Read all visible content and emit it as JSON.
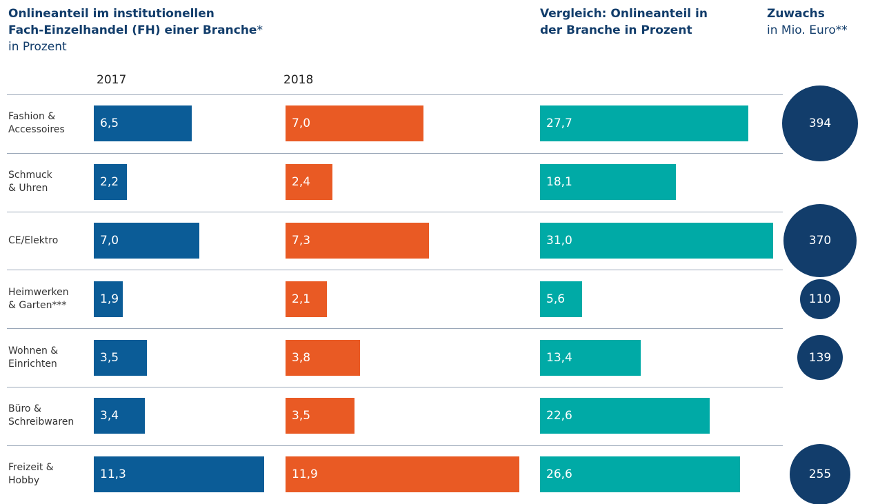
{
  "chart_data": {
    "type": "bar",
    "title": "Onlineanteil im institutionellen\nFach-Einzelhandel (FH) einer Branche",
    "title_note": "*",
    "subtitle": "in Prozent",
    "categories": [
      "Fashion &\nAccessoires",
      "Schmuck\n& Uhren",
      "CE/Elektro",
      "Heimwerken\n& Garten***",
      "Wohnen &\nEinrichten",
      "Büro &\nSchreibwaren",
      "Freizeit &\nHobby"
    ],
    "series": [
      {
        "name": "2017",
        "color": "#0b5c97",
        "values": [
          6.5,
          2.2,
          7.0,
          1.9,
          3.5,
          3.4,
          11.3
        ],
        "value_labels": [
          "6,5",
          "2,2",
          "7,0",
          "1,9",
          "3,5",
          "3,4",
          "11,3"
        ]
      },
      {
        "name": "2018",
        "color": "#e95a24",
        "values": [
          7.0,
          2.4,
          7.3,
          2.1,
          3.8,
          3.5,
          11.9
        ],
        "value_labels": [
          "7,0",
          "2,4",
          "7,3",
          "2,1",
          "3,8",
          "3,5",
          "11,9"
        ]
      },
      {
        "name": "Vergleich: Onlineanteil in\nder Branche in Prozent",
        "color": "#00aaa6",
        "values": [
          27.7,
          18.1,
          31.0,
          5.6,
          13.4,
          22.6,
          26.6
        ],
        "value_labels": [
          "27,7",
          "18,1",
          "31,0",
          "5,6",
          "13,4",
          "22,6",
          "26,6"
        ]
      }
    ],
    "bubbles": {
      "title": "Zuwachs",
      "subtitle": "in Mio. Euro**",
      "color": "#123d6b",
      "values": [
        394,
        null,
        370,
        110,
        139,
        null,
        255
      ]
    }
  }
}
